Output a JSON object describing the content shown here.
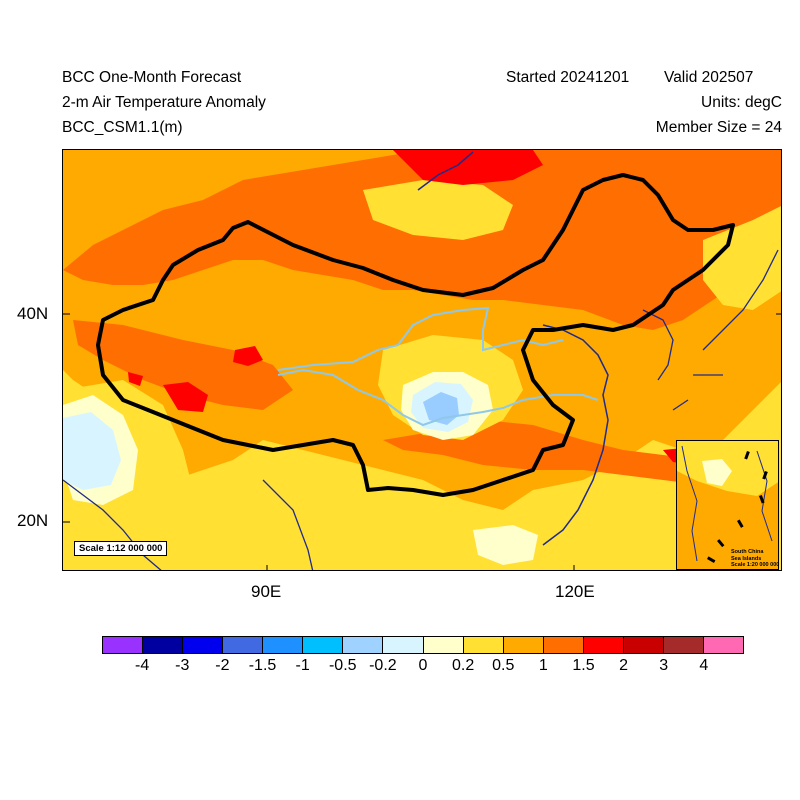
{
  "header": {
    "title": "BCC One-Month Forecast",
    "variable": "2-m Air Temperature Anomaly",
    "model": "BCC_CSM1.1(m)",
    "started": "Started 20241201",
    "valid": "Valid 202507",
    "units": "Units: degC",
    "members": "Member Size = 24"
  },
  "axes": {
    "lat_labels": [
      "40N",
      "20N"
    ],
    "lon_labels": [
      "90E",
      "120E"
    ]
  },
  "map": {
    "scale_label": "Scale 1:12 000 000",
    "inset_label_line1": "South China",
    "inset_label_line2": "Sea Islands",
    "inset_label_line3": "Scale 1:20 000 000",
    "colors": {
      "anom_neg_02_0": "#d8f5ff",
      "anom_0_02": "#ffffcc",
      "anom_02_05": "#ffe033",
      "anom_05_1": "#ffaa00",
      "anom_1_15": "#ff6e00",
      "anom_15_2": "#ff0000",
      "anom_neg_05": "#99ccff",
      "border": "#000000",
      "coast": "#1e2a8c",
      "river": "#8fc8e8"
    }
  },
  "colorbar": {
    "colors": [
      "#9932ff",
      "#0000a0",
      "#0000ee",
      "#4169e1",
      "#1e90ff",
      "#00bfff",
      "#a0d2ff",
      "#d8f5ff",
      "#ffffcc",
      "#ffe033",
      "#ffaa00",
      "#ff6e00",
      "#ff0000",
      "#c80000",
      "#a52a2a",
      "#ff69b4"
    ],
    "labels": [
      "-4",
      "-3",
      "-2",
      "-1.5",
      "-1",
      "-0.5",
      "-0.2",
      "0",
      "0.2",
      "0.5",
      "1",
      "1.5",
      "2",
      "3",
      "4"
    ]
  }
}
